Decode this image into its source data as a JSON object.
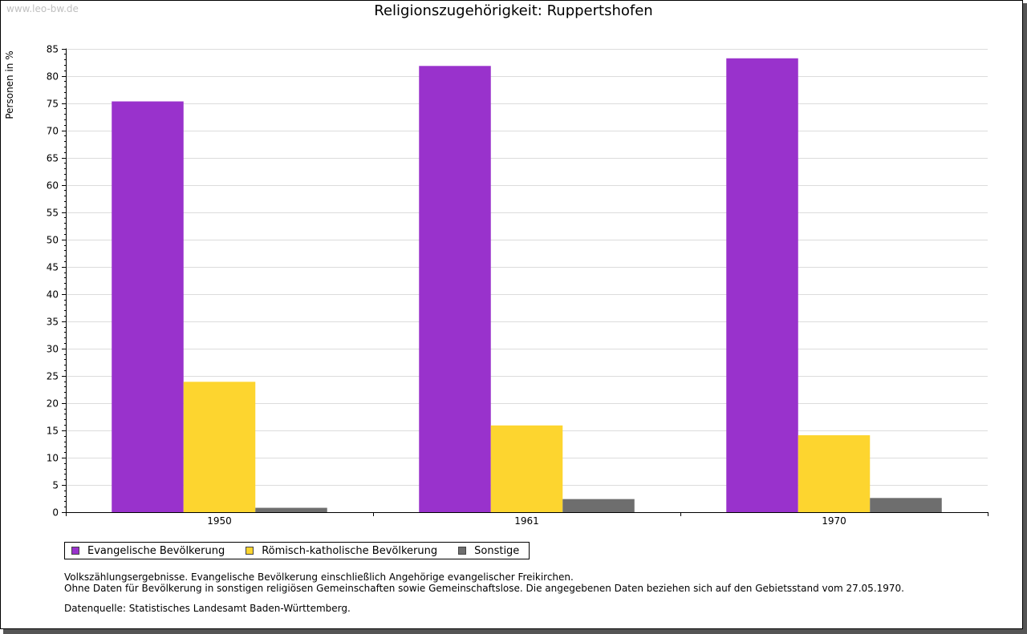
{
  "watermark": "www.leo-bw.de",
  "chart_data": {
    "type": "bar",
    "title": "Religionszugehörigkeit: Ruppertshofen",
    "xlabel": "",
    "ylabel": "Personen in %",
    "categories": [
      "1950",
      "1961",
      "1970"
    ],
    "series": [
      {
        "name": "Evangelische Bevölkerung",
        "color": "#9932cc",
        "values": [
          75.3,
          81.8,
          83.2
        ]
      },
      {
        "name": "Römisch-katholische Bevölkerung",
        "color": "#fdd52f",
        "values": [
          23.9,
          15.9,
          14.1
        ]
      },
      {
        "name": "Sonstige",
        "color": "#6e6e6e",
        "values": [
          0.8,
          2.4,
          2.6
        ]
      }
    ],
    "ylim": [
      0,
      85
    ],
    "ytick_step": 5,
    "grid": true,
    "legend": "bottom-left"
  },
  "notes": [
    "Volkszählungsergebnisse. Evangelische Bevölkerung einschließlich Angehörige evangelischer Freikirchen.",
    "Ohne Daten für Bevölkerung in sonstigen religiösen Gemeinschaften sowie Gemeinschaftslose. Die angegebenen Daten beziehen sich auf den Gebietsstand vom 27.05.1970."
  ],
  "source": "Datenquelle: Statistisches Landesamt Baden-Württemberg."
}
